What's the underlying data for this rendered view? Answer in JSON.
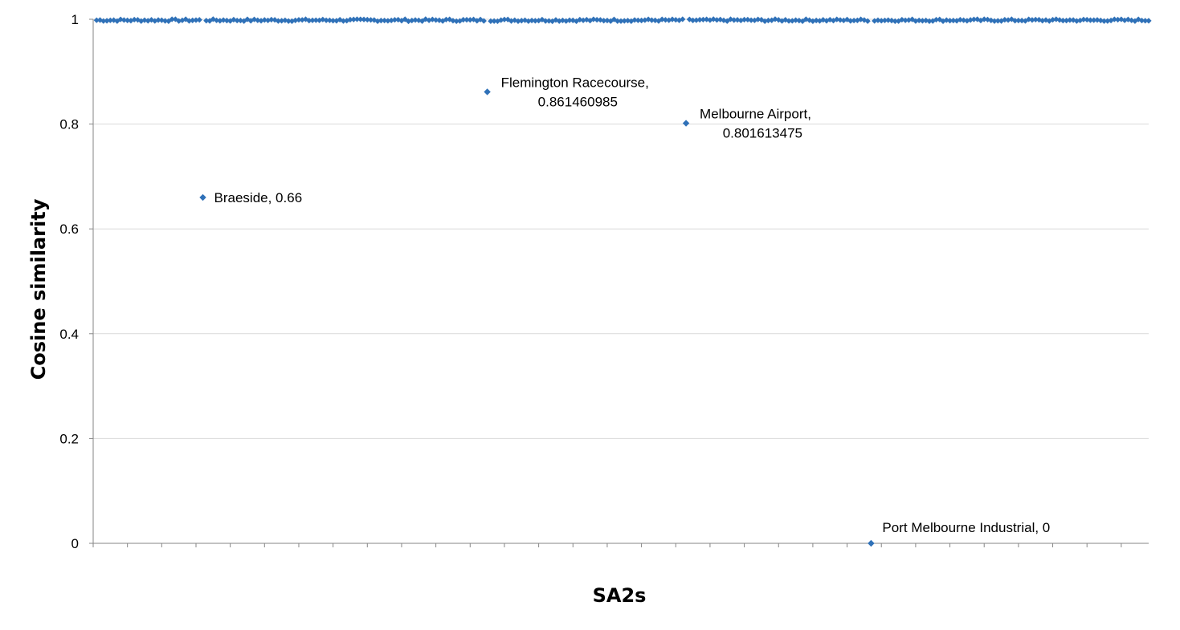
{
  "chart_data": {
    "type": "scatter",
    "xlabel": "SA2s",
    "ylabel": "Cosine similarity",
    "ylim": [
      0,
      1
    ],
    "yticks": [
      "0",
      "0.2",
      "0.4",
      "0.6",
      "0.8",
      "1"
    ],
    "xlim": [
      0,
      308
    ],
    "grid": true,
    "legend": "none",
    "marker": "diamond",
    "series_color": "#2F71B8",
    "baseline_value": 0.9982,
    "baseline_count": 306,
    "points": [
      {
        "x": 32,
        "y": 0.66,
        "label": "Braeside, 0.66"
      },
      {
        "x": 115,
        "y": 0.861460985,
        "label": "Flemington Racecourse, 0.861460985",
        "label_lines": [
          "Flemington Racecourse,",
          "0.861460985"
        ]
      },
      {
        "x": 173,
        "y": 0.801613475,
        "label": "Melbourne Airport, 0.801613475",
        "label_lines": [
          "Melbourne Airport,",
          "0.801613475"
        ]
      },
      {
        "x": 227,
        "y": 0,
        "label": "Port Melbourne Industrial, 0"
      }
    ]
  }
}
